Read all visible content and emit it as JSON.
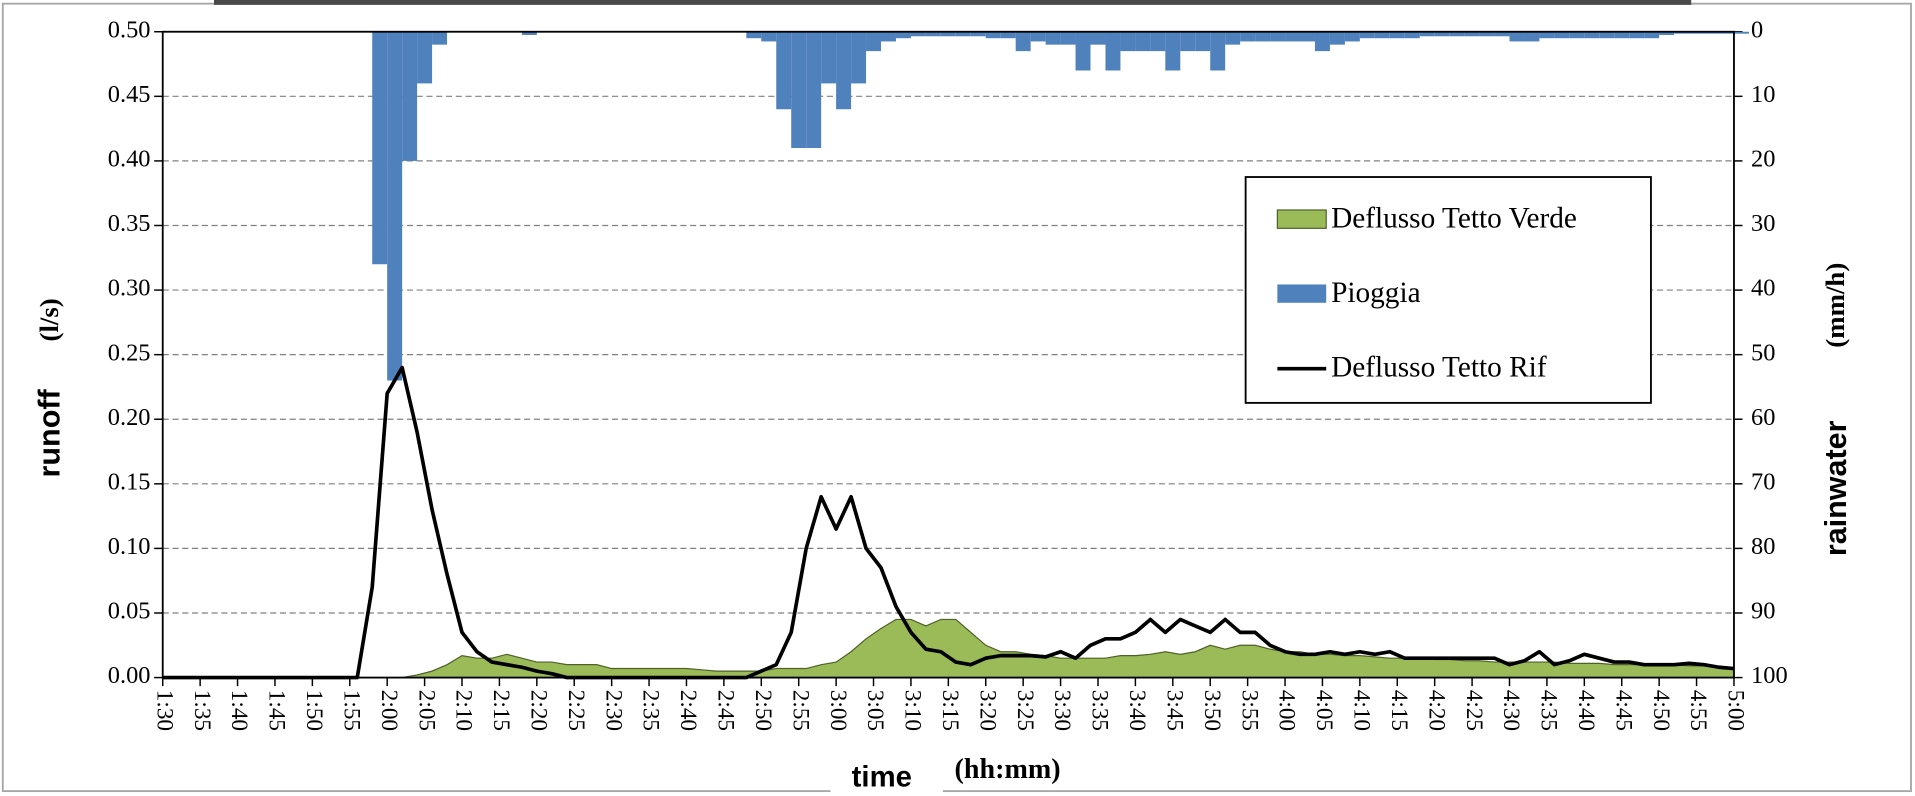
{
  "chart_data": {
    "type": "combo",
    "x_label": "time",
    "x_label_unit": "(hh:mm)",
    "y_label": "runoff",
    "y_label_unit": "(l/s)",
    "y2_label": "rainwater",
    "y2_label_unit": "(mm/h)",
    "x": [
      "1:30",
      "1:32",
      "1:34",
      "1:36",
      "1:38",
      "1:40",
      "1:42",
      "1:44",
      "1:46",
      "1:48",
      "1:50",
      "1:52",
      "1:54",
      "1:56",
      "1:58",
      "2:00",
      "2:02",
      "2:04",
      "2:06",
      "2:08",
      "2:10",
      "2:12",
      "2:14",
      "2:16",
      "2:18",
      "2:20",
      "2:22",
      "2:24",
      "2:26",
      "2:28",
      "2:30",
      "2:32",
      "2:34",
      "2:36",
      "2:38",
      "2:40",
      "2:42",
      "2:44",
      "2:46",
      "2:48",
      "2:50",
      "2:52",
      "2:54",
      "2:56",
      "2:58",
      "3:00",
      "3:02",
      "3:04",
      "3:06",
      "3:08",
      "3:10",
      "3:12",
      "3:14",
      "3:16",
      "3:18",
      "3:20",
      "3:22",
      "3:24",
      "3:26",
      "3:28",
      "3:30",
      "3:32",
      "3:34",
      "3:36",
      "3:38",
      "3:40",
      "3:42",
      "3:44",
      "3:46",
      "3:48",
      "3:50",
      "3:52",
      "3:54",
      "3:56",
      "3:58",
      "4:00",
      "4:02",
      "4:04",
      "4:06",
      "4:08",
      "4:10",
      "4:12",
      "4:14",
      "4:16",
      "4:18",
      "4:20",
      "4:22",
      "4:24",
      "4:26",
      "4:28",
      "4:30",
      "4:32",
      "4:34",
      "4:36",
      "4:38",
      "4:40",
      "4:42",
      "4:44",
      "4:46",
      "4:48",
      "4:50",
      "4:52",
      "4:54",
      "4:56",
      "4:58",
      "5:00"
    ],
    "series": [
      {
        "name": "Deflusso Tetto Verde",
        "type": "area",
        "color": "#9bbb59",
        "values": [
          0,
          0,
          0,
          0,
          0,
          0,
          0,
          0,
          0,
          0,
          0,
          0,
          0,
          0,
          0,
          0,
          0,
          0.002,
          0.005,
          0.01,
          0.017,
          0.015,
          0.015,
          0.018,
          0.015,
          0.012,
          0.012,
          0.01,
          0.01,
          0.01,
          0.007,
          0.007,
          0.007,
          0.007,
          0.007,
          0.007,
          0.006,
          0.005,
          0.005,
          0.005,
          0.005,
          0.007,
          0.007,
          0.007,
          0.01,
          0.012,
          0.02,
          0.03,
          0.038,
          0.045,
          0.045,
          0.04,
          0.045,
          0.045,
          0.035,
          0.025,
          0.02,
          0.02,
          0.018,
          0.017,
          0.015,
          0.015,
          0.015,
          0.015,
          0.017,
          0.017,
          0.018,
          0.02,
          0.018,
          0.02,
          0.025,
          0.022,
          0.025,
          0.025,
          0.022,
          0.02,
          0.02,
          0.018,
          0.018,
          0.017,
          0.017,
          0.016,
          0.015,
          0.015,
          0.015,
          0.014,
          0.014,
          0.013,
          0.013,
          0.012,
          0.012,
          0.012,
          0.012,
          0.012,
          0.011,
          0.011,
          0.011,
          0.01,
          0.01,
          0.01,
          0.01,
          0.01,
          0.009,
          0.009,
          0.008,
          0.007
        ]
      },
      {
        "name": "Pioggia",
        "type": "bar",
        "axis": "y2",
        "color": "#4f81bd",
        "values": [
          0,
          0,
          0,
          0,
          0,
          0,
          0,
          0,
          0,
          0,
          0,
          0,
          0,
          0,
          36,
          54,
          20,
          8,
          2,
          0,
          0,
          0,
          0,
          0,
          0.5,
          0,
          0,
          0,
          0,
          0,
          0,
          0,
          0,
          0,
          0,
          0,
          0,
          0,
          0,
          1,
          1.5,
          12,
          18,
          18,
          8,
          12,
          8,
          3,
          1.5,
          1,
          0.7,
          0.7,
          0.7,
          0.7,
          0.7,
          1,
          1,
          3,
          1.5,
          2,
          2,
          6,
          2,
          6,
          3,
          3,
          3,
          6,
          3,
          3,
          6,
          2,
          1.5,
          1.5,
          1.5,
          1.5,
          1.5,
          3,
          2,
          1.5,
          1,
          1,
          1,
          1,
          0.7,
          0.7,
          0.7,
          0.7,
          0.7,
          0.7,
          1.5,
          1.5,
          1,
          1,
          1,
          1,
          1,
          1,
          1,
          1,
          0.5,
          0.3,
          0.3,
          0.3,
          0.3,
          0.3
        ]
      },
      {
        "name": "Deflusso Tetto Rif",
        "type": "line",
        "color": "#000000",
        "values": [
          0,
          0,
          0,
          0,
          0,
          0,
          0,
          0,
          0,
          0,
          0,
          0,
          0,
          0,
          0.07,
          0.22,
          0.24,
          0.19,
          0.13,
          0.08,
          0.035,
          0.02,
          0.012,
          0.01,
          0.008,
          0.005,
          0.003,
          0,
          0,
          0,
          0,
          0,
          0,
          0,
          0,
          0,
          0,
          0,
          0,
          0,
          0.005,
          0.01,
          0.035,
          0.1,
          0.14,
          0.115,
          0.14,
          0.1,
          0.085,
          0.055,
          0.035,
          0.022,
          0.02,
          0.012,
          0.01,
          0.015,
          0.017,
          0.017,
          0.017,
          0.016,
          0.02,
          0.015,
          0.025,
          0.03,
          0.03,
          0.035,
          0.045,
          0.035,
          0.045,
          0.04,
          0.035,
          0.045,
          0.035,
          0.035,
          0.025,
          0.02,
          0.018,
          0.018,
          0.02,
          0.018,
          0.02,
          0.018,
          0.02,
          0.015,
          0.015,
          0.015,
          0.015,
          0.015,
          0.015,
          0.015,
          0.01,
          0.013,
          0.02,
          0.01,
          0.013,
          0.018,
          0.015,
          0.012,
          0.012,
          0.01,
          0.01,
          0.01,
          0.011,
          0.01,
          0.008,
          0.007
        ]
      }
    ],
    "xlim": [
      "1:30",
      "5:00"
    ],
    "xticks": [
      "1:30",
      "1:35",
      "1:40",
      "1:45",
      "1:50",
      "1:55",
      "2:00",
      "2:05",
      "2:10",
      "2:15",
      "2:20",
      "2:25",
      "2:30",
      "2:35",
      "2:40",
      "2:45",
      "2:50",
      "2:55",
      "3:00",
      "3:05",
      "3:10",
      "3:15",
      "3:20",
      "3:25",
      "3:30",
      "3:35",
      "3:40",
      "3:45",
      "3:50",
      "3:55",
      "4:00",
      "4:05",
      "4:10",
      "4:15",
      "4:20",
      "4:25",
      "4:30",
      "4:35",
      "4:40",
      "4:45",
      "4:50",
      "4:55",
      "5:00"
    ],
    "ylim": [
      0,
      0.5
    ],
    "yticks": [
      {
        "value": 0,
        "label": "0.00"
      },
      {
        "value": 0.05,
        "label": "0.05"
      },
      {
        "value": 0.1,
        "label": "0.10"
      },
      {
        "value": 0.15,
        "label": "0.15"
      },
      {
        "value": 0.2,
        "label": "0.20"
      },
      {
        "value": 0.25,
        "label": "0.25"
      },
      {
        "value": 0.3,
        "label": "0.30"
      },
      {
        "value": 0.35,
        "label": "0.35"
      },
      {
        "value": 0.4,
        "label": "0.40"
      },
      {
        "value": 0.45,
        "label": "0.45"
      },
      {
        "value": 0.5,
        "label": "0.50"
      }
    ],
    "y2lim": [
      0,
      100
    ],
    "y2ticks": [
      0,
      10,
      20,
      30,
      40,
      50,
      60,
      70,
      80,
      90,
      100
    ],
    "y2_inverted": true,
    "grid": true,
    "legend": "upper right"
  }
}
